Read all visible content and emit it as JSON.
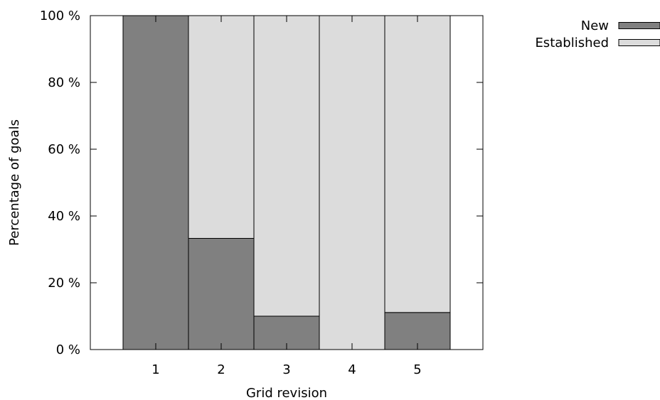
{
  "colors": {
    "new": "#808080",
    "established": "#dcdcdc",
    "stroke": "#000000",
    "background": "#ffffff"
  },
  "chart_data": {
    "type": "bar",
    "stacked": true,
    "categories": [
      "1",
      "2",
      "3",
      "4",
      "5"
    ],
    "series": [
      {
        "name": "New",
        "values": [
          100,
          33.3,
          10,
          0,
          11.1
        ]
      },
      {
        "name": "Established",
        "values": [
          0,
          66.7,
          90,
          100,
          88.9
        ]
      }
    ],
    "xlabel": "Grid revision",
    "ylabel": "Percentage of goals",
    "ylim": [
      0,
      100
    ],
    "yticks": [
      0,
      20,
      40,
      60,
      80,
      100
    ],
    "ytick_labels": [
      "0 %",
      "20 %",
      "40 %",
      "60 %",
      "80 %",
      "100 %"
    ],
    "grid": false,
    "legend_position": "top-right",
    "legend_entries": [
      "New",
      "Established"
    ]
  }
}
